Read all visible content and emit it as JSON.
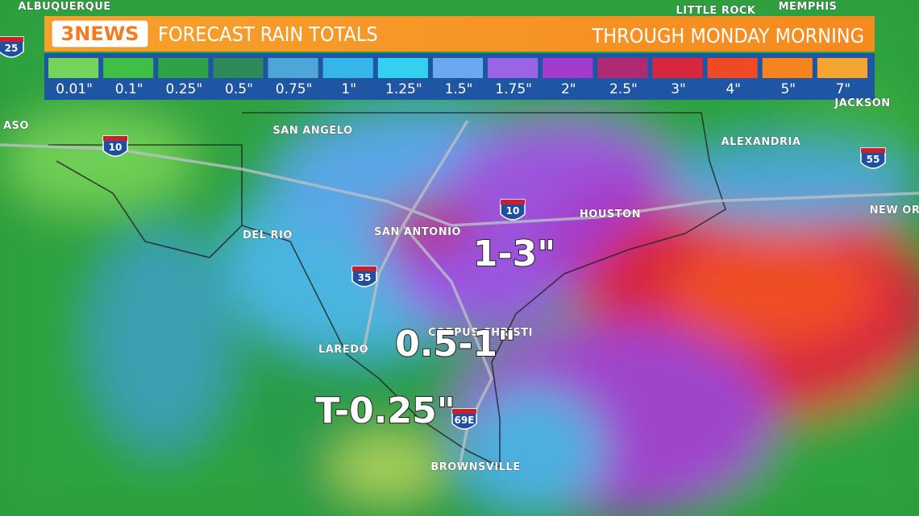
{
  "header": {
    "logo": "3NEWS",
    "title": "FORECAST RAIN TOTALS",
    "period": "THROUGH MONDAY MORNING"
  },
  "legend": {
    "items": [
      {
        "label": "0.01\"",
        "color": "#74d35a"
      },
      {
        "label": "0.1\"",
        "color": "#3fbf45"
      },
      {
        "label": "0.25\"",
        "color": "#2ea246"
      },
      {
        "label": "0.5\"",
        "color": "#2e8a5a"
      },
      {
        "label": "0.75\"",
        "color": "#4ea5d8"
      },
      {
        "label": "1\"",
        "color": "#37b6ea"
      },
      {
        "label": "1.25\"",
        "color": "#35d0f0"
      },
      {
        "label": "1.5\"",
        "color": "#6aa8f0"
      },
      {
        "label": "1.75\"",
        "color": "#9b63e6"
      },
      {
        "label": "2\"",
        "color": "#a23ad0"
      },
      {
        "label": "2.5\"",
        "color": "#b02a72"
      },
      {
        "label": "3\"",
        "color": "#d8273c"
      },
      {
        "label": "4\"",
        "color": "#ef4a25"
      },
      {
        "label": "5\"",
        "color": "#f6841e"
      },
      {
        "label": "7\"",
        "color": "#f3a431"
      }
    ]
  },
  "cities": [
    "ALBUQUERQUE",
    "LITTLE ROCK",
    "MEMPHIS",
    "JACKSON",
    "SAN ANGELO",
    "ALEXANDRIA",
    "HOUSTON",
    "NEW OR",
    "DEL RIO",
    "SAN ANTONIO",
    "CORPUS CHRISTI",
    "LAREDO",
    "BROWNSVILLE",
    "ASO"
  ],
  "highways": [
    "25",
    "10",
    "10",
    "55",
    "35",
    "69E"
  ],
  "annotations": [
    "1-3\"",
    "0.5-1\"",
    "T-0.25\""
  ]
}
